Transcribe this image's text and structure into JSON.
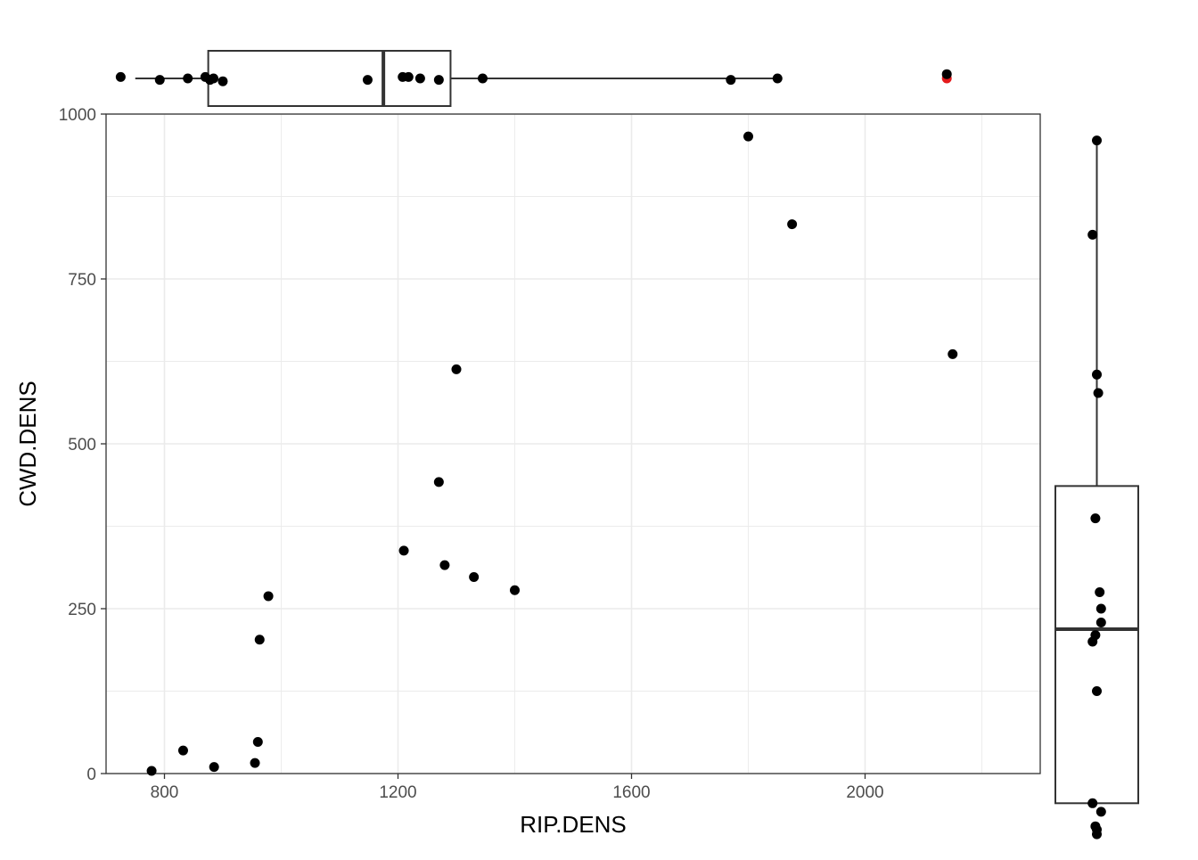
{
  "chart_data": {
    "type": "scatter",
    "xlabel": "RIP.DENS",
    "ylabel": "CWD.DENS",
    "xlim": [
      700,
      2300
    ],
    "ylim": [
      0,
      1000
    ],
    "x_ticks": [
      800,
      1200,
      1600,
      2000
    ],
    "y_ticks": [
      0,
      250,
      500,
      750,
      1000
    ],
    "grid": true,
    "point_color": "#000000",
    "highlight_color": "#e41a1c",
    "points": [
      {
        "x": 778,
        "y": 4
      },
      {
        "x": 832,
        "y": 35
      },
      {
        "x": 885,
        "y": 10
      },
      {
        "x": 955,
        "y": 16
      },
      {
        "x": 960,
        "y": 48
      },
      {
        "x": 963,
        "y": 203
      },
      {
        "x": 978,
        "y": 269
      },
      {
        "x": 1210,
        "y": 338
      },
      {
        "x": 1270,
        "y": 442
      },
      {
        "x": 1280,
        "y": 316
      },
      {
        "x": 1300,
        "y": 613
      },
      {
        "x": 1330,
        "y": 298
      },
      {
        "x": 1400,
        "y": 278
      },
      {
        "x": 1800,
        "y": 966
      },
      {
        "x": 1875,
        "y": 833
      },
      {
        "x": 2150,
        "y": 636
      }
    ],
    "marginal_x_boxplot": {
      "min": 750,
      "q1": 875,
      "median": 1175,
      "q3": 1290,
      "max": 1850,
      "outliers": [
        2140
      ],
      "jitter_points": [
        725,
        792,
        840,
        870,
        878,
        884,
        900,
        1148,
        1208,
        1218,
        1238,
        1270,
        1345,
        1770,
        1850,
        2140
      ]
    },
    "marginal_y_boxplot": {
      "min": -45,
      "q1": -45,
      "median": 219,
      "q3": 436,
      "max": 960,
      "jitter_points": [
        960,
        817,
        605,
        577,
        387,
        275,
        250,
        229,
        210,
        200,
        125,
        -45,
        -58,
        -80,
        -85,
        -92
      ]
    }
  }
}
